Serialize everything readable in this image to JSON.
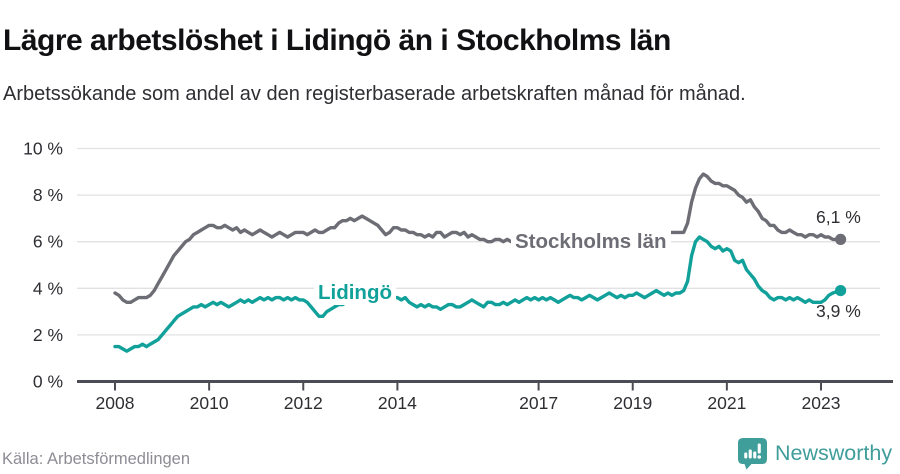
{
  "header": {
    "title": "Lägre arbetslöshet i Lidingö än i Stockholms län",
    "subtitle": "Arbetssökande som andel av den registerbaserade arbetskraften månad för månad."
  },
  "footer": {
    "source": "Källa: Arbetsförmedlingen",
    "brand_name": "Newsworthy",
    "brand_color": "#3f9d9a"
  },
  "chart_data": {
    "type": "line",
    "title": "Lägre arbetslöshet i Lidingö än i Stockholms län",
    "subtitle": "Arbetssökande som andel av den registerbaserade arbetskraften månad för månad.",
    "unit": "%",
    "x_start_year": 2008,
    "x_resolution": "monthly",
    "x_end": "2023-06",
    "ylim": [
      0,
      10
    ],
    "grid": "horizontal",
    "legend": "inline-labels",
    "colors": {
      "grid": "#e2e2e4",
      "axis": "#4c4c54",
      "tick_label": "#2e2e33"
    },
    "yticks": [
      {
        "value": 10,
        "label": "10 %"
      },
      {
        "value": 8,
        "label": "8 %"
      },
      {
        "value": 6,
        "label": "6 %"
      },
      {
        "value": 4,
        "label": "4 %"
      },
      {
        "value": 2,
        "label": "2 %"
      },
      {
        "value": 0,
        "label": "0 %"
      }
    ],
    "xticks": [
      {
        "year": 2008,
        "label": "2008"
      },
      {
        "year": 2010,
        "label": "2010"
      },
      {
        "year": 2012,
        "label": "2012"
      },
      {
        "year": 2014,
        "label": "2014"
      },
      {
        "year": 2017,
        "label": "2017"
      },
      {
        "year": 2019,
        "label": "2019"
      },
      {
        "year": 2021,
        "label": "2021"
      },
      {
        "year": 2023,
        "label": "2023"
      }
    ],
    "series": [
      {
        "name": "Stockholms län",
        "color": "#6d6d75",
        "end_label": "6,1 %",
        "values": [
          3.8,
          3.7,
          3.5,
          3.4,
          3.4,
          3.5,
          3.6,
          3.6,
          3.6,
          3.7,
          3.9,
          4.2,
          4.5,
          4.8,
          5.1,
          5.4,
          5.6,
          5.8,
          6.0,
          6.1,
          6.3,
          6.4,
          6.5,
          6.6,
          6.7,
          6.7,
          6.6,
          6.6,
          6.7,
          6.6,
          6.5,
          6.6,
          6.4,
          6.5,
          6.4,
          6.3,
          6.4,
          6.5,
          6.4,
          6.3,
          6.2,
          6.3,
          6.4,
          6.3,
          6.2,
          6.3,
          6.4,
          6.4,
          6.4,
          6.3,
          6.4,
          6.5,
          6.4,
          6.4,
          6.5,
          6.6,
          6.6,
          6.8,
          6.9,
          6.9,
          7.0,
          6.9,
          7.0,
          7.1,
          7.0,
          6.9,
          6.8,
          6.7,
          6.5,
          6.3,
          6.4,
          6.6,
          6.6,
          6.5,
          6.5,
          6.4,
          6.4,
          6.3,
          6.3,
          6.2,
          6.3,
          6.2,
          6.4,
          6.4,
          6.2,
          6.3,
          6.4,
          6.4,
          6.3,
          6.4,
          6.2,
          6.3,
          6.2,
          6.1,
          6.1,
          6.0,
          6.0,
          6.1,
          6.1,
          6.0,
          6.1,
          6.0,
          6.0,
          6.1,
          6.0,
          6.1,
          6.1,
          6.0,
          6.0,
          6.1,
          6.0,
          5.9,
          6.0,
          6.0,
          6.1,
          6.0,
          6.1,
          6.1,
          6.2,
          6.1,
          6.1,
          6.0,
          6.0,
          5.9,
          6.0,
          6.0,
          6.1,
          6.1,
          6.2,
          6.1,
          6.2,
          6.2,
          6.2,
          6.1,
          6.2,
          6.2,
          6.3,
          6.3,
          6.4,
          6.3,
          6.3,
          6.4,
          6.4,
          6.4,
          6.4,
          6.4,
          6.8,
          7.7,
          8.3,
          8.7,
          8.9,
          8.8,
          8.6,
          8.5,
          8.5,
          8.4,
          8.4,
          8.3,
          8.2,
          8.0,
          7.9,
          7.7,
          7.8,
          7.5,
          7.3,
          7.0,
          6.9,
          6.7,
          6.7,
          6.5,
          6.4,
          6.4,
          6.5,
          6.4,
          6.3,
          6.3,
          6.2,
          6.3,
          6.3,
          6.2,
          6.3,
          6.2,
          6.2,
          6.1,
          6.1,
          6.1
        ]
      },
      {
        "name": "Lidingö",
        "color": "#12a19a",
        "end_label": "3,9 %",
        "values": [
          1.5,
          1.5,
          1.4,
          1.3,
          1.4,
          1.5,
          1.5,
          1.6,
          1.5,
          1.6,
          1.7,
          1.8,
          2.0,
          2.2,
          2.4,
          2.6,
          2.8,
          2.9,
          3.0,
          3.1,
          3.2,
          3.2,
          3.3,
          3.2,
          3.3,
          3.4,
          3.3,
          3.4,
          3.3,
          3.2,
          3.3,
          3.4,
          3.5,
          3.4,
          3.5,
          3.4,
          3.5,
          3.6,
          3.5,
          3.6,
          3.5,
          3.6,
          3.6,
          3.5,
          3.6,
          3.5,
          3.6,
          3.5,
          3.5,
          3.4,
          3.2,
          3.0,
          2.8,
          2.8,
          3.0,
          3.1,
          3.2,
          3.3,
          3.3,
          3.4,
          3.4,
          3.5,
          3.4,
          3.5,
          3.5,
          3.4,
          3.5,
          3.6,
          3.5,
          3.6,
          3.5,
          3.6,
          3.6,
          3.5,
          3.6,
          3.4,
          3.3,
          3.2,
          3.3,
          3.2,
          3.3,
          3.2,
          3.2,
          3.1,
          3.2,
          3.3,
          3.3,
          3.2,
          3.2,
          3.3,
          3.4,
          3.5,
          3.4,
          3.3,
          3.2,
          3.4,
          3.4,
          3.3,
          3.3,
          3.4,
          3.3,
          3.4,
          3.5,
          3.4,
          3.5,
          3.6,
          3.5,
          3.6,
          3.5,
          3.6,
          3.5,
          3.6,
          3.5,
          3.4,
          3.5,
          3.6,
          3.7,
          3.6,
          3.6,
          3.5,
          3.6,
          3.7,
          3.6,
          3.5,
          3.6,
          3.7,
          3.8,
          3.7,
          3.6,
          3.7,
          3.6,
          3.7,
          3.7,
          3.8,
          3.7,
          3.6,
          3.7,
          3.8,
          3.9,
          3.8,
          3.7,
          3.8,
          3.7,
          3.8,
          3.8,
          3.9,
          4.3,
          5.4,
          6.0,
          6.2,
          6.1,
          6.0,
          5.8,
          5.7,
          5.8,
          5.6,
          5.7,
          5.6,
          5.2,
          5.1,
          5.2,
          4.8,
          4.6,
          4.4,
          4.1,
          3.9,
          3.8,
          3.6,
          3.5,
          3.6,
          3.6,
          3.5,
          3.6,
          3.5,
          3.6,
          3.5,
          3.4,
          3.5,
          3.4,
          3.4,
          3.4,
          3.5,
          3.7,
          3.8,
          3.85,
          3.9
        ]
      }
    ]
  }
}
